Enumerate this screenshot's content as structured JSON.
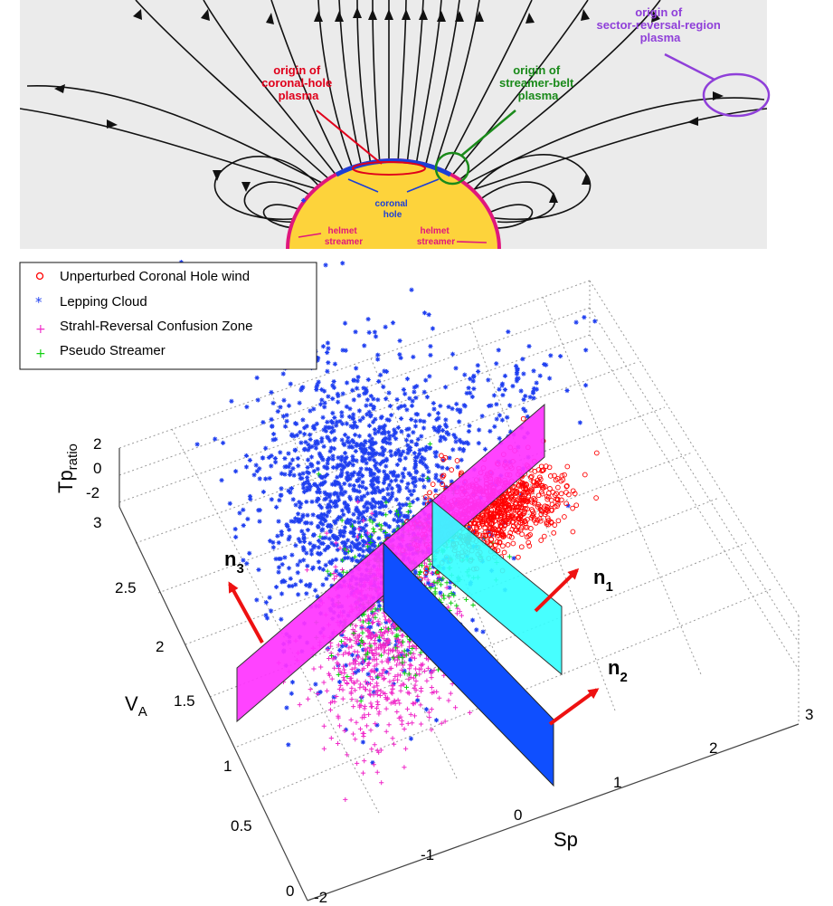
{
  "diagram": {
    "labels": {
      "coronal_hole_origin": [
        "origin of",
        "coronal-hole",
        "plasma"
      ],
      "streamer_belt_origin": [
        "origin of",
        "streamer-belt",
        "plasma"
      ],
      "sector_reversal_origin": [
        "origin of",
        "sector-reversal-region",
        "plasma"
      ],
      "coronal_hole": [
        "coronal",
        "hole"
      ],
      "helmet_left": [
        "helmet",
        "streamer"
      ],
      "helmet_right": [
        "helmet",
        "streamer"
      ]
    },
    "colors": {
      "background": "#ebebeb",
      "sun": "#fdd33b",
      "sun_rim": "#e0177c",
      "field_lines": "#111111",
      "coronal_hole_arc": "#1c3fd6",
      "coronal_hole_label": "#e0001b",
      "streamer_belt_label": "#1a8a1a",
      "sector_reversal_label": "#8f3fd9",
      "helmet_label": "#e0177c",
      "hole_label": "#1c3fd6"
    }
  },
  "plot": {
    "legend": [
      {
        "label": "Unperturbed Coronal Hole wind",
        "marker": "o",
        "color": "#ff0000"
      },
      {
        "label": "Lepping Cloud",
        "marker": "*",
        "color": "#1f3ff0"
      },
      {
        "label": "Strahl-Reversal Confusion Zone",
        "marker": "+",
        "color": "#f029c8"
      },
      {
        "label": "Pseudo Streamer",
        "marker": "+",
        "color": "#10d010"
      }
    ],
    "axes": {
      "sp_label": "Sp",
      "va_label_main": "V",
      "va_label_sub": "A",
      "tp_label_main": "Tp",
      "tp_label_sub": "ratio",
      "sp_ticks": [
        "-2",
        "-1",
        "0",
        "1",
        "2",
        "3"
      ],
      "va_ticks": [
        "0",
        "0.5",
        "1",
        "1.5",
        "2",
        "2.5",
        "3"
      ],
      "tp_ticks": [
        "2",
        "0",
        "-2"
      ]
    },
    "normals": [
      {
        "main": "n",
        "sub": "1"
      },
      {
        "main": "n",
        "sub": "2"
      },
      {
        "main": "n",
        "sub": "3"
      }
    ],
    "plane_colors": {
      "magenta": "#ff33ff",
      "cyan": "#33ffff",
      "blue": "#0f4fff"
    },
    "arrow_color": "#ee1111"
  }
}
